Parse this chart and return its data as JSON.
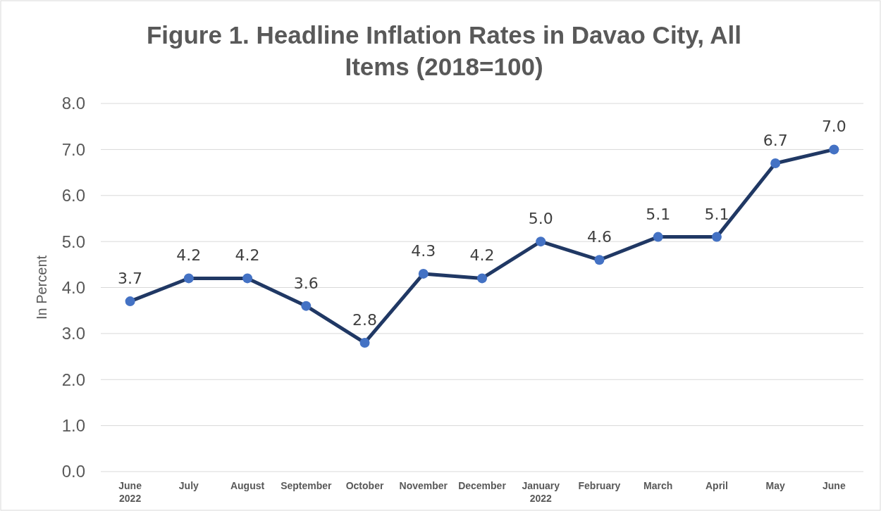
{
  "chart_data": {
    "type": "line",
    "title": "Figure 1. Headline Inflation Rates in Davao City, All Items (2018=100)",
    "ylabel": "In Percent",
    "categories": [
      "June\n2022",
      "July",
      "August",
      "September",
      "October",
      "November",
      "December",
      "January\n2022",
      "February",
      "March",
      "April",
      "May",
      "June"
    ],
    "series": [
      {
        "color": "#203864",
        "values": [
          3.7,
          4.2,
          4.2,
          3.6,
          2.8,
          4.3,
          4.2,
          5.0,
          4.6,
          5.1,
          5.1,
          6.7,
          7.0
        ],
        "value_labels": [
          "3.7",
          "4.2",
          "4.2",
          "3.6",
          "2.8",
          "4.3",
          "4.2",
          "5.0",
          "4.6",
          "5.1",
          "5.1",
          "6.7",
          "7.0"
        ]
      }
    ],
    "ylim": [
      0,
      8
    ],
    "yticks": [
      {
        "value": 0,
        "label": "0.0"
      },
      {
        "value": 1,
        "label": "1.0"
      },
      {
        "value": 2,
        "label": "2.0"
      },
      {
        "value": 3,
        "label": "3.0"
      },
      {
        "value": 4,
        "label": "4.0"
      },
      {
        "value": 5,
        "label": "5.0"
      },
      {
        "value": 6,
        "label": "6.0"
      },
      {
        "value": 7,
        "label": "7.0"
      },
      {
        "value": 8,
        "label": "8.0"
      }
    ],
    "grid": "y",
    "marker": "circle",
    "line_style": "solid"
  }
}
